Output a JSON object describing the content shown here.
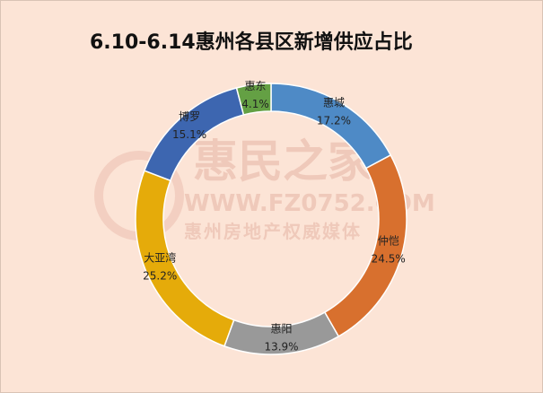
{
  "chart_data": {
    "type": "pie",
    "donut": true,
    "title": "6.10-6.14惠州各县区新增供应占比",
    "categories": [
      "惠城",
      "仲恺",
      "惠阳",
      "大亚湾",
      "博罗",
      "惠东"
    ],
    "values": [
      17.2,
      24.5,
      13.9,
      25.2,
      15.1,
      4.1
    ],
    "labels": [
      "17.2%",
      "24.5%",
      "13.9%",
      "25.2%",
      "15.1%",
      "4.1%"
    ],
    "colors": [
      "#4e8ac6",
      "#d8702e",
      "#999999",
      "#e5ab0a",
      "#3d66b0",
      "#64a044"
    ],
    "start": "top",
    "direction": "clockwise",
    "legend": "none"
  },
  "watermark": {
    "brand": "惠民之家",
    "url": "WWW.FZ0752.COM",
    "slogan": "惠州房地产权威媒体"
  },
  "background": "#fce4d6"
}
